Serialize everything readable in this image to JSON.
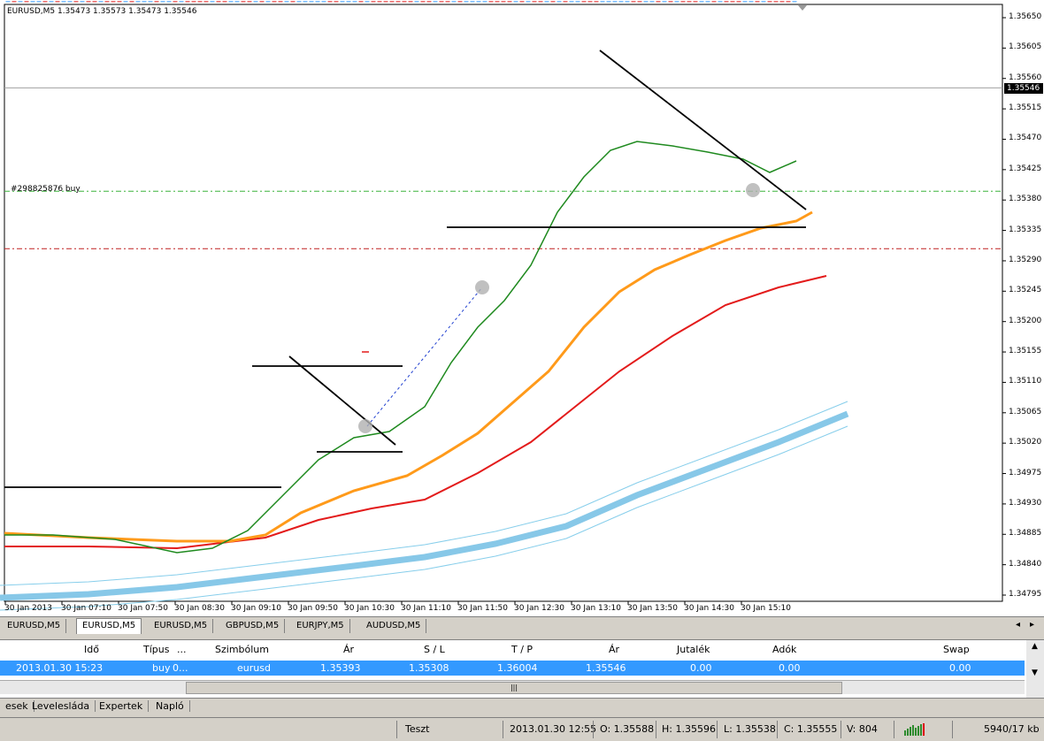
{
  "chart": {
    "header": "EURUSD,M5  1.35473 1.35573 1.35473 1.35546",
    "order_label": "#298825876 buy",
    "current_price": "1.35546",
    "price_min": 1.34795,
    "price_max": 1.3565,
    "y_ticks": [
      "1.35650",
      "1.35605",
      "1.35560",
      "1.35515",
      "1.35470",
      "1.35425",
      "1.35380",
      "1.35335",
      "1.35290",
      "1.35245",
      "1.35200",
      "1.35155",
      "1.35110",
      "1.35065",
      "1.35020",
      "1.34975",
      "1.34930",
      "1.34885",
      "1.34840",
      "1.34795"
    ],
    "x_ticks": [
      "30 Jan 2013",
      "30 Jan 07:10",
      "30 Jan 07:50",
      "30 Jan 08:30",
      "30 Jan 09:10",
      "30 Jan 09:50",
      "30 Jan 10:30",
      "30 Jan 11:10",
      "30 Jan 11:50",
      "30 Jan 12:30",
      "30 Jan 13:10",
      "30 Jan 13:50",
      "30 Jan 14:30",
      "30 Jan 15:10"
    ],
    "bull_color": "#3399ff",
    "bear_color": "#e31b1b",
    "levels": {
      "bid": 1.35546,
      "open_price": 1.35393,
      "stop_loss": 1.35308
    }
  },
  "chart_tabs": [
    "EURUSD,M5",
    "EURUSD,M5",
    "EURUSD,M5",
    "GBPUSD,M5",
    "EURJPY,M5",
    "AUDUSD,M5"
  ],
  "terminal": {
    "columns": [
      "Idő",
      "Típus",
      "...",
      "Szimbólum",
      "Ár",
      "S / L",
      "T / P",
      "Ár",
      "Jutalék",
      "Adók",
      "Swap"
    ],
    "row": {
      "time": "2013.01.30 15:23",
      "type": "buy",
      "size": "0...",
      "symbol": "eurusd",
      "open_price": "1.35393",
      "sl": "1.35308",
      "tp": "1.36004",
      "price": "1.35546",
      "commission": "0.00",
      "taxes": "0.00",
      "swap": "0.00"
    },
    "scroll_grip": "|||"
  },
  "bottom_tabs": [
    "esek",
    "Levelesláda",
    "Expertek",
    "Napló"
  ],
  "status": {
    "profile": "Teszt",
    "datetime": "2013.01.30 12:55",
    "open": "O: 1.35588",
    "high": "H: 1.35596",
    "low": "L: 1.35538",
    "close": "C: 1.35555",
    "volume": "V: 804",
    "traffic": "5940/17 kb"
  }
}
